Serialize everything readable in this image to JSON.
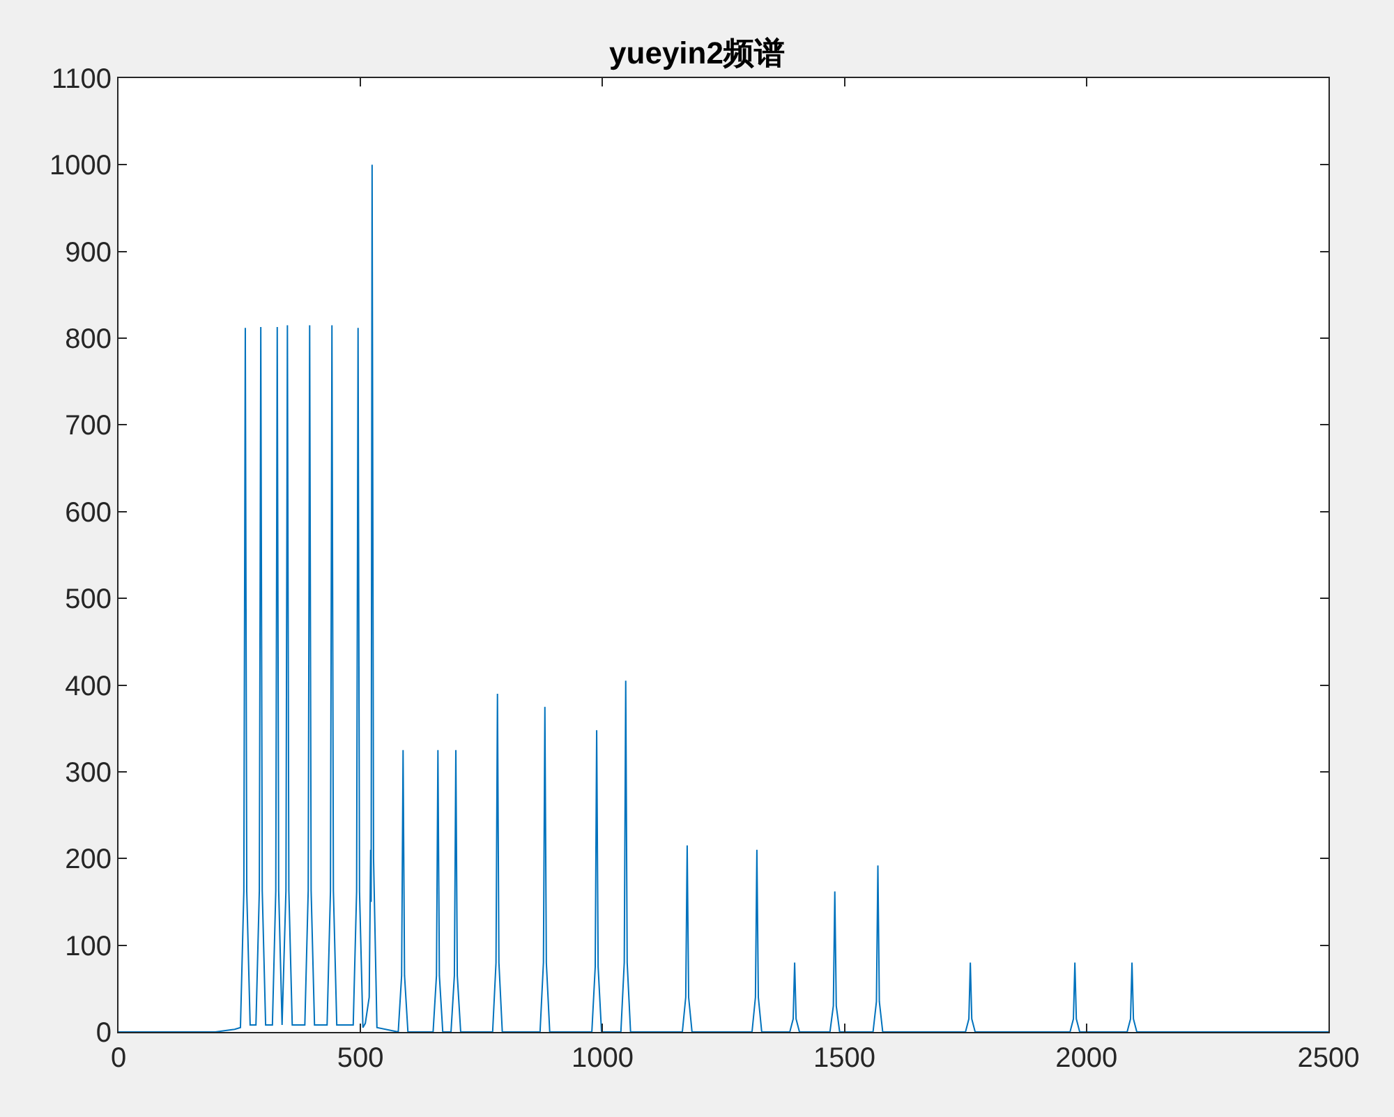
{
  "chart_data": {
    "type": "line",
    "title": "yueyin2频谱",
    "x": [
      0,
      200,
      240,
      252,
      259,
      262,
      265,
      272,
      284,
      291,
      294,
      297,
      304,
      318,
      325,
      328,
      331,
      338,
      346,
      349,
      352,
      359,
      385,
      392,
      395,
      398,
      405,
      431,
      438,
      441,
      444,
      451,
      485,
      492,
      495,
      498,
      505,
      510,
      518,
      521,
      522,
      524,
      527,
      534,
      578,
      585,
      588,
      591,
      598,
      650,
      657,
      660,
      663,
      670,
      687,
      694,
      697,
      700,
      707,
      773,
      780,
      783,
      786,
      793,
      871,
      878,
      881,
      884,
      891,
      978,
      985,
      988,
      991,
      998,
      1038,
      1045,
      1048,
      1051,
      1058,
      1165,
      1172,
      1175,
      1178,
      1185,
      1309,
      1316,
      1319,
      1322,
      1329,
      1387,
      1394,
      1397,
      1400,
      1407,
      1470,
      1477,
      1480,
      1483,
      1490,
      1559,
      1566,
      1569,
      1572,
      1579,
      1750,
      1757,
      1760,
      1763,
      1770,
      1966,
      1973,
      1976,
      1979,
      1986,
      2084,
      2091,
      2094,
      2097,
      2104,
      2500
    ],
    "series": [
      {
        "color": "#0072bd",
        "values": [
          0,
          0,
          3,
          5,
          162,
          812,
          162,
          8,
          8,
          163,
          813,
          163,
          8,
          8,
          163,
          813,
          163,
          8,
          163,
          815,
          163,
          8,
          8,
          163,
          815,
          163,
          8,
          8,
          163,
          815,
          163,
          8,
          8,
          162,
          812,
          162,
          5,
          10,
          40,
          210,
          150,
          1000,
          200,
          5,
          0,
          65,
          325,
          65,
          0,
          0,
          65,
          325,
          65,
          0,
          0,
          65,
          325,
          65,
          0,
          0,
          80,
          390,
          80,
          0,
          0,
          80,
          375,
          80,
          0,
          0,
          75,
          348,
          75,
          0,
          0,
          80,
          405,
          80,
          0,
          0,
          40,
          215,
          40,
          0,
          0,
          40,
          210,
          40,
          0,
          0,
          15,
          80,
          15,
          0,
          0,
          30,
          162,
          30,
          0,
          0,
          35,
          192,
          35,
          0,
          0,
          15,
          80,
          15,
          0,
          0,
          15,
          80,
          15,
          0,
          0,
          15,
          80,
          15,
          0,
          0
        ]
      }
    ],
    "xlim": [
      0,
      2500
    ],
    "xticks": [
      0,
      500,
      1000,
      1500,
      2000,
      2500
    ],
    "ylim": [
      0,
      1100
    ],
    "yticks": [
      0,
      100,
      200,
      300,
      400,
      500,
      600,
      700,
      800,
      900,
      1000,
      1100
    ],
    "marker": "none",
    "line_style": "solid"
  }
}
